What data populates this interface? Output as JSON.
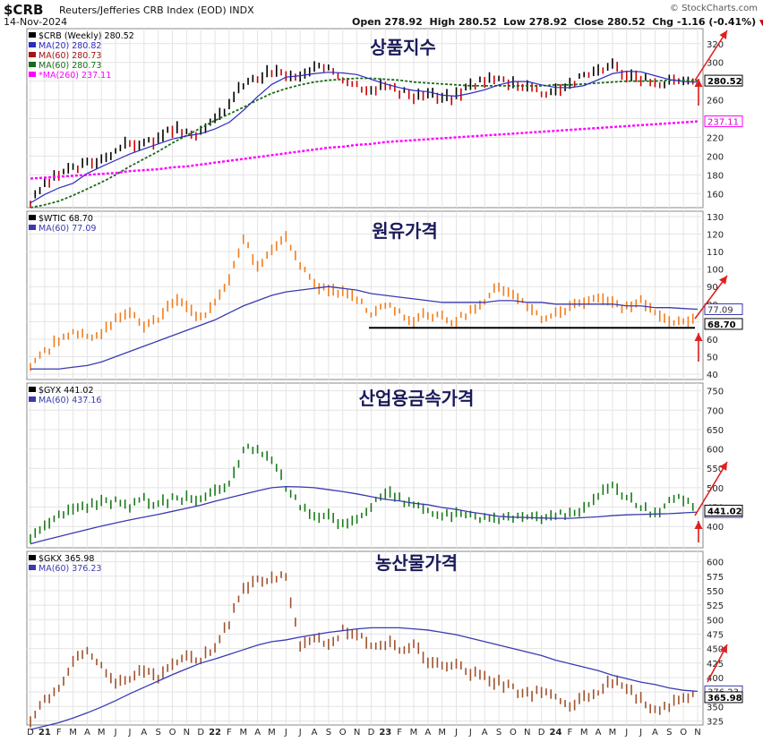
{
  "header": {
    "ticker": "$CRB",
    "index_name": "Reuters/Jefferies CRB Index (EOD)  INDX",
    "date": "14-Nov-2024",
    "open_label": "Open",
    "open": "278.92",
    "high_label": "High",
    "high": "280.52",
    "low_label": "Low",
    "low": "278.92",
    "close_label": "Close",
    "close": "280.52",
    "chg_label": "Chg",
    "chg": "-1.16 (-0.41%)",
    "watermark": "© StockCharts.com"
  },
  "x_axis_labels": [
    "D",
    "21",
    "F",
    "M",
    "A",
    "M",
    "J",
    "J",
    "A",
    "S",
    "O",
    "N",
    "D",
    "22",
    "F",
    "M",
    "A",
    "M",
    "J",
    "J",
    "A",
    "S",
    "O",
    "N",
    "D",
    "23",
    "F",
    "M",
    "A",
    "M",
    "J",
    "J",
    "A",
    "S",
    "O",
    "N",
    "D",
    "24",
    "F",
    "M",
    "A",
    "M",
    "J",
    "J",
    "A",
    "S",
    "O",
    "N"
  ],
  "colors": {
    "up": "#000000",
    "down": "#cc0000",
    "ma20": "#2c2cbf",
    "ma60": "#aa1111",
    "ma60b": "#1a6b1a",
    "ma260": "#ff00ff",
    "wti": "#f07d1e",
    "gyx": "#1a7a1a",
    "gkx": "#a0522d",
    "ma": "#3a3ab0",
    "arrow": "#e02020"
  },
  "chart_data": [
    {
      "type": "line",
      "id": "crb",
      "title": "상품지수",
      "legend": [
        "$CRB (Weekly) 280.52",
        "MA(20) 280.82",
        "MA(60) 280.73",
        "MA(60) 280.73",
        "*MA(260) 237.11"
      ],
      "ylim": [
        145,
        336
      ],
      "y_ticks": [
        160,
        180,
        200,
        220,
        240,
        260,
        280,
        300,
        320
      ],
      "last_value_label": "280.52",
      "ma_value_label": "237.11",
      "x": [
        "2020-12",
        "2021-01",
        "2021-02",
        "2021-03",
        "2021-04",
        "2021-05",
        "2021-06",
        "2021-07",
        "2021-08",
        "2021-09",
        "2021-10",
        "2021-11",
        "2021-12",
        "2022-01",
        "2022-02",
        "2022-03",
        "2022-04",
        "2022-05",
        "2022-06",
        "2022-07",
        "2022-08",
        "2022-09",
        "2022-10",
        "2022-11",
        "2022-12",
        "2023-01",
        "2023-02",
        "2023-03",
        "2023-04",
        "2023-05",
        "2023-06",
        "2023-07",
        "2023-08",
        "2023-09",
        "2023-10",
        "2023-11",
        "2023-12",
        "2024-01",
        "2024-02",
        "2024-03",
        "2024-04",
        "2024-05",
        "2024-06",
        "2024-07",
        "2024-08",
        "2024-09",
        "2024-10",
        "2024-11"
      ],
      "series": [
        {
          "name": "$CRB",
          "values": [
            150,
            168,
            180,
            186,
            192,
            197,
            207,
            213,
            214,
            218,
            228,
            226,
            224,
            238,
            256,
            277,
            283,
            290,
            287,
            283,
            292,
            296,
            284,
            276,
            272,
            276,
            268,
            264,
            267,
            261,
            264,
            276,
            282,
            282,
            278,
            276,
            268,
            271,
            277,
            285,
            293,
            297,
            287,
            283,
            276,
            281,
            278,
            280.52
          ]
        },
        {
          "name": "MA(60)",
          "values": [
            145,
            148,
            152,
            158,
            165,
            172,
            180,
            189,
            197,
            205,
            214,
            222,
            230,
            238,
            245,
            252,
            260,
            267,
            272,
            276,
            279,
            281,
            282,
            283,
            283,
            282,
            281,
            279,
            278,
            277,
            276,
            275,
            275,
            275,
            275,
            275,
            275,
            276,
            276,
            277,
            278,
            279,
            280,
            280,
            280,
            281,
            281,
            280.73
          ]
        },
        {
          "name": "MA(260)",
          "values": [
            176,
            177,
            178,
            179,
            180,
            181,
            182,
            184,
            185,
            186,
            188,
            189,
            191,
            193,
            195,
            197,
            199,
            201,
            203,
            205,
            207,
            209,
            210,
            212,
            213,
            215,
            216,
            217,
            218,
            219,
            220,
            221,
            222,
            223,
            224,
            225,
            226,
            227,
            228,
            229,
            230,
            231,
            232,
            233,
            234,
            235,
            236,
            237.11
          ]
        }
      ]
    },
    {
      "type": "line",
      "id": "wtic",
      "title": "원유가격",
      "legend": [
        "$WTIC 68.70",
        "MA(60) 77.09"
      ],
      "ylim": [
        37,
        133
      ],
      "y_ticks": [
        40,
        50,
        60,
        70,
        80,
        90,
        100,
        110,
        120,
        130
      ],
      "last_value_label": "68.70",
      "ma_value_label": "77.09",
      "support_level": 66.5,
      "series": [
        {
          "name": "$WTIC",
          "values": [
            46,
            52,
            60,
            63,
            62,
            64,
            72,
            74,
            68,
            72,
            82,
            80,
            72,
            82,
            92,
            118,
            102,
            110,
            118,
            102,
            92,
            86,
            88,
            84,
            75,
            80,
            76,
            70,
            75,
            72,
            70,
            76,
            82,
            90,
            86,
            78,
            72,
            74,
            78,
            82,
            84,
            80,
            78,
            82,
            74,
            70,
            72,
            68.7
          ]
        },
        {
          "name": "MA(60)",
          "values": [
            43,
            43,
            43,
            44,
            45,
            47,
            50,
            53,
            56,
            59,
            62,
            65,
            68,
            71,
            75,
            79,
            82,
            85,
            87,
            88,
            89,
            90,
            89,
            88,
            86,
            85,
            84,
            83,
            82,
            81,
            81,
            81,
            81,
            82,
            82,
            81,
            81,
            80,
            80,
            80,
            80,
            80,
            79,
            79,
            78,
            78,
            77.5,
            77.09
          ]
        }
      ]
    },
    {
      "type": "line",
      "id": "gyx",
      "title": "산업용금속가격",
      "legend": [
        "$GYX 441.02",
        "MA(60) 437.16"
      ],
      "ylim": [
        345,
        770
      ],
      "y_ticks": [
        400,
        450,
        500,
        550,
        600,
        650,
        700,
        750
      ],
      "last_value_label": "441.02",
      "ma_value_label": "437.16",
      "series": [
        {
          "name": "$GYX",
          "values": [
            365,
            395,
            425,
            440,
            455,
            460,
            465,
            455,
            470,
            455,
            470,
            475,
            470,
            490,
            510,
            600,
            600,
            575,
            505,
            455,
            420,
            430,
            405,
            420,
            455,
            490,
            470,
            455,
            440,
            430,
            430,
            425,
            425,
            420,
            425,
            420,
            420,
            430,
            430,
            450,
            480,
            500,
            475,
            450,
            430,
            470,
            470,
            441.02
          ]
        },
        {
          "name": "MA(60)",
          "values": [
            355,
            365,
            374,
            383,
            392,
            401,
            409,
            417,
            424,
            431,
            439,
            447,
            455,
            465,
            474,
            483,
            492,
            500,
            503,
            502,
            500,
            495,
            490,
            484,
            477,
            470,
            466,
            460,
            456,
            449,
            444,
            437,
            432,
            426,
            424,
            423,
            422,
            421,
            421,
            423,
            425,
            428,
            430,
            431,
            432,
            433,
            435,
            437.16
          ]
        }
      ]
    },
    {
      "type": "line",
      "id": "gkx",
      "title": "농산물가격",
      "legend": [
        "$GKX 365.98",
        "MA(60) 376.23"
      ],
      "ylim": [
        318,
        618
      ],
      "y_ticks": [
        325,
        350,
        375,
        400,
        425,
        450,
        475,
        500,
        525,
        550,
        575,
        600
      ],
      "last_value_label": "365.98",
      "ma_value_label": "376.23",
      "series": [
        {
          "name": "$GKX",
          "values": [
            325,
            358,
            380,
            425,
            445,
            420,
            395,
            400,
            410,
            400,
            420,
            440,
            430,
            455,
            495,
            555,
            570,
            570,
            575,
            450,
            470,
            460,
            480,
            470,
            460,
            460,
            450,
            455,
            430,
            420,
            425,
            410,
            400,
            390,
            380,
            370,
            375,
            365,
            355,
            365,
            375,
            395,
            385,
            360,
            340,
            350,
            365,
            365.98
          ]
        },
        {
          "name": "MA(60)",
          "values": [
            310,
            316,
            322,
            330,
            339,
            349,
            360,
            372,
            383,
            394,
            405,
            415,
            425,
            432,
            440,
            448,
            456,
            462,
            465,
            470,
            474,
            478,
            481,
            484,
            486,
            486,
            486,
            484,
            482,
            478,
            474,
            468,
            462,
            456,
            450,
            444,
            438,
            430,
            424,
            418,
            412,
            404,
            398,
            392,
            388,
            382,
            378,
            376.23
          ]
        }
      ]
    }
  ]
}
